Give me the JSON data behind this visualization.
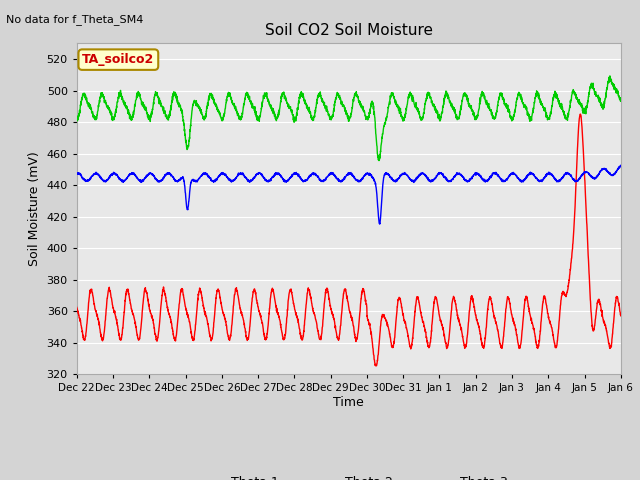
{
  "title": "Soil CO2 Soil Moisture",
  "no_data_text": "No data for f_Theta_SM4",
  "legend_label_text": "TA_soilco2",
  "ylabel": "Soil Moisture (mV)",
  "xlabel": "Time",
  "ylim": [
    320,
    530
  ],
  "yticks": [
    320,
    340,
    360,
    380,
    400,
    420,
    440,
    460,
    480,
    500,
    520
  ],
  "fig_bg_color": "#d4d4d4",
  "plot_bg_color": "#e8e8e8",
  "grid_color": "#ffffff",
  "theta1_color": "#ff0000",
  "theta2_color": "#00cc00",
  "theta3_color": "#0000ff",
  "x_tick_labels": [
    "Dec 22",
    "Dec 23",
    "Dec 24",
    "Dec 25",
    "Dec 26",
    "Dec 27",
    "Dec 28",
    "Dec 29",
    "Dec 30",
    "Dec 31",
    "Jan 1",
    "Jan 2",
    "Jan 3",
    "Jan 4",
    "Jan 5",
    "Jan 6"
  ]
}
